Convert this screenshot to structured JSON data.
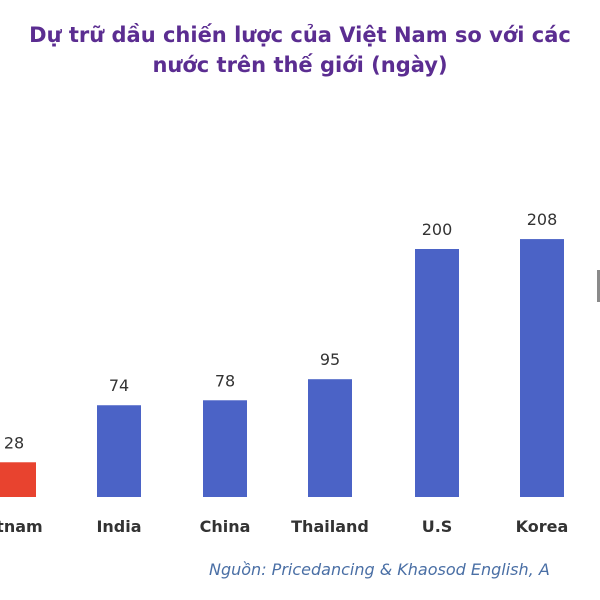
{
  "title_line1": "Dự trữ dầu chiến lược của Việt Nam so với các",
  "title_line2": "nước trên thế giới (ngày)",
  "source": "Nguồn: Pricedancing & Khaosod English, A",
  "colors": {
    "title": "#5b2d91",
    "bar": "#4b63c6",
    "highlight": "#e8432f",
    "source": "#4a6fa5"
  },
  "chart_data": {
    "type": "bar",
    "title": "Dự trữ dầu chiến lược của Việt Nam so với các nước trên thế giới (ngày)",
    "categories": [
      "etnam",
      "India",
      "China",
      "Thailand",
      "U.S",
      "Korea"
    ],
    "values": [
      28,
      74,
      78,
      95,
      200,
      208
    ],
    "highlight_index": 0,
    "xlabel": "",
    "ylabel": "",
    "grid": false,
    "legend": "none"
  }
}
